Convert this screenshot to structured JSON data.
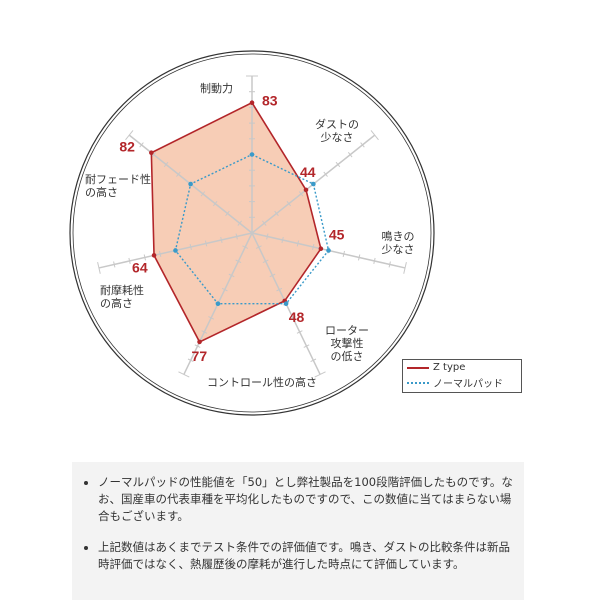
{
  "chart_data": {
    "type": "radar",
    "axes": [
      "制動力",
      "ダストの\n少なさ",
      "鳴きの\n少なさ",
      "ローター\n攻撃性\nの低さ",
      "コントロール性の高さ",
      "耐摩耗性\nの高さ",
      "耐フェード性\nの高さ"
    ],
    "range": [
      0,
      100
    ],
    "series": [
      {
        "name": "Z type",
        "values": [
          83,
          44,
          45,
          48,
          77,
          64,
          82
        ],
        "color": "#b3262a",
        "fill": "#f7cdb6",
        "style": "solid"
      },
      {
        "name": "ノーマルパッド",
        "values": [
          50,
          50,
          50,
          50,
          50,
          50,
          50
        ],
        "color": "#3a9ac9",
        "style": "dotted"
      }
    ],
    "data_labels": [
      "83",
      "44",
      "45",
      "48",
      "77",
      "64",
      "82"
    ],
    "legend_position": "bottom-right"
  },
  "notes": [
    "ノーマルパッドの性能値を「50」とし弊社製品を100段階評価したものです。なお、国産車の代表車種を平均化したものですので、この数値に当てはまらない場合もございます。",
    "上記数値はあくまでテスト条件での評価値です。鳴き、ダストの比較条件は新品時評価ではなく、熱履歴後の摩耗が進行した時点にて評価しています。"
  ]
}
